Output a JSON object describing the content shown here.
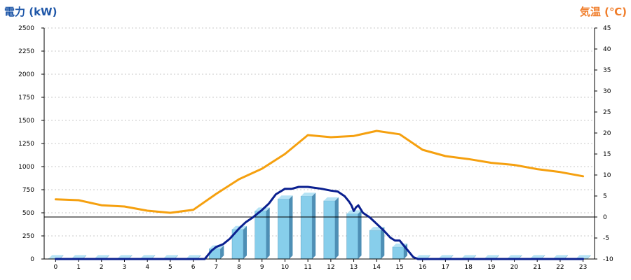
{
  "chart_data": {
    "type": "bar+line",
    "left_axis_label": "電力 (kW)",
    "right_axis_label": "気温 (℃)",
    "left_ylim": [
      0,
      2500
    ],
    "right_ylim": [
      -10,
      45
    ],
    "left_ticks": [
      0,
      250,
      500,
      750,
      1000,
      1250,
      1500,
      1750,
      2000,
      2250,
      2500
    ],
    "right_ticks": [
      -10,
      -5,
      0,
      5,
      10,
      15,
      20,
      25,
      30,
      35,
      40,
      45
    ],
    "categories": [
      "0",
      "1",
      "2",
      "3",
      "4",
      "5",
      "6",
      "7",
      "8",
      "9",
      "10",
      "11",
      "12",
      "13",
      "14",
      "15",
      "16",
      "17",
      "18",
      "19",
      "20",
      "21",
      "22",
      "23"
    ],
    "grid": "horizontal dashed",
    "reference_line": {
      "axis": "right",
      "value": 0
    },
    "series": [
      {
        "kind": "bar",
        "axis": "left",
        "color": "#87ceeb",
        "values": [
          5,
          5,
          5,
          5,
          5,
          5,
          5,
          110,
          320,
          520,
          650,
          680,
          630,
          490,
          310,
          130,
          5,
          5,
          5,
          5,
          5,
          5,
          5,
          5
        ]
      },
      {
        "kind": "line",
        "axis": "left",
        "color": "#0a1f8f",
        "x": [
          0,
          6.5,
          6.8,
          7,
          7.3,
          7.6,
          8,
          8.3,
          8.6,
          9,
          9.3,
          9.6,
          10,
          10.3,
          10.6,
          11,
          11.3,
          11.6,
          12,
          12.3,
          12.6,
          12.8,
          12.9,
          13,
          13.1,
          13.2,
          13.4,
          13.7,
          14,
          14.3,
          14.6,
          14.8,
          15,
          15.2,
          15.4,
          15.6,
          15.8,
          16,
          23
        ],
        "values": [
          0,
          0,
          90,
          130,
          160,
          220,
          330,
          400,
          450,
          530,
          600,
          700,
          760,
          760,
          780,
          780,
          770,
          760,
          740,
          730,
          680,
          620,
          580,
          520,
          560,
          580,
          500,
          450,
          380,
          310,
          230,
          200,
          200,
          140,
          80,
          20,
          0,
          0,
          0
        ]
      },
      {
        "kind": "line",
        "axis": "right",
        "color": "#f5a00f",
        "values": [
          4.2,
          4.0,
          2.8,
          2.5,
          1.5,
          1.0,
          1.7,
          5.5,
          9.0,
          11.5,
          15.0,
          19.5,
          19.0,
          19.3,
          20.5,
          19.7,
          16.0,
          14.5,
          13.8,
          12.9,
          12.4,
          11.4,
          10.7,
          9.7
        ]
      }
    ]
  }
}
